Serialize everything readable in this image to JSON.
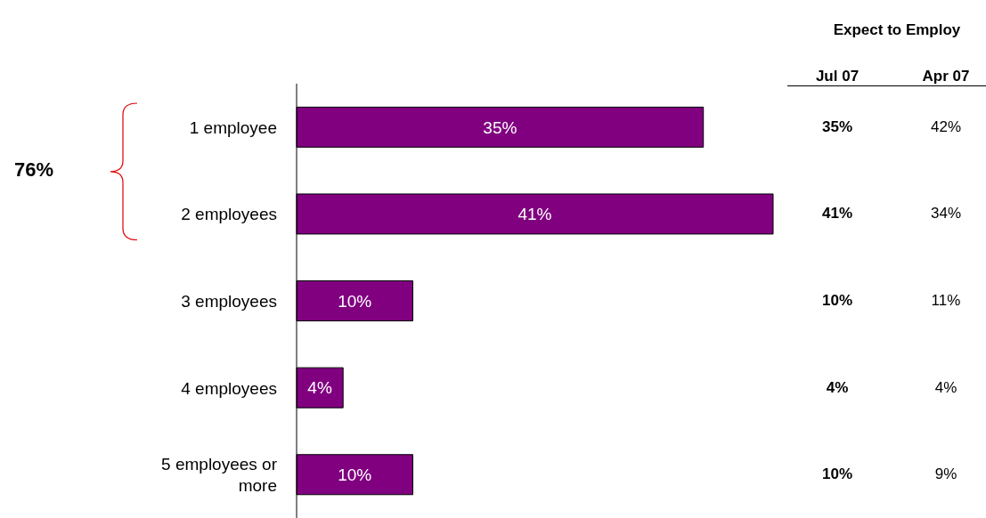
{
  "chart_data": {
    "type": "bar",
    "orientation": "horizontal",
    "categories": [
      "1 employee",
      "2 employees",
      "3 employees",
      "4 employees",
      "5 employees or more"
    ],
    "values": [
      35,
      41,
      10,
      4,
      10
    ],
    "value_labels": [
      "35%",
      "41%",
      "10%",
      "4%",
      "10%"
    ],
    "color": "#800080",
    "annotations": [
      "76%",
      "Expect to Employ",
      "Jul 07",
      "Apr 07",
      "42%",
      "34%",
      "11%",
      "4%",
      "9%"
    ]
  }
}
